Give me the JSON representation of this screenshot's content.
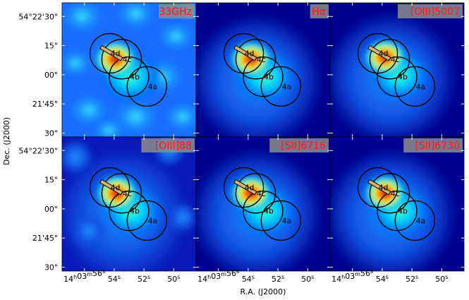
{
  "figure": {
    "xlabel": "R.A. (J2000)",
    "ylabel": "Dec. (J2000)"
  },
  "chart_data": {
    "type": "heatmap",
    "xlabel": "R.A. (J2000)",
    "ylabel": "Dec. (J2000)",
    "colormap": "jet",
    "x_ticks": [
      {
        "value": "14h03m56s",
        "label": "14h03m56s"
      },
      {
        "value": "14h03m54s",
        "label": "54s"
      },
      {
        "value": "14h03m52s",
        "label": "52s"
      },
      {
        "value": "14h03m50s",
        "label": "50s"
      }
    ],
    "y_ticks": [
      {
        "value": "54°22'30\"",
        "label": "54°22'30\""
      },
      {
        "value": "54°22'15\"",
        "label": "15\""
      },
      {
        "value": "54°22'00\"",
        "label": "00\""
      },
      {
        "value": "54°21'45\"",
        "label": "21'45\""
      },
      {
        "value": "54°21'30\"",
        "label": "30\""
      }
    ],
    "apertures": [
      {
        "name": "4d",
        "ra": "14h03m54.3s",
        "dec": "54°22'11\""
      },
      {
        "name": "4c",
        "ra": "14h03m53.5s",
        "dec": "54°22'08\""
      },
      {
        "name": "4b",
        "ra": "14h03m53.0s",
        "dec": "54°21'59\""
      },
      {
        "name": "4a",
        "ra": "14h03m51.8s",
        "dec": "54°21'54\""
      }
    ],
    "panels": [
      {
        "label": "33GHz",
        "peak_ra": "14h03m53.9s",
        "peak_dec": "54°22'08\"",
        "background": "diffuse"
      },
      {
        "label": "Hα",
        "peak_ra": "14h03m53.8s",
        "peak_dec": "54°22'08\"",
        "background": "compact"
      },
      {
        "label": "[OIII]5007",
        "peak_ra": "14h03m53.8s",
        "peak_dec": "54°22'09\"",
        "background": "compact"
      },
      {
        "label": "[OIII]88",
        "peak_ra": "14h03m53.8s",
        "peak_dec": "54°22'08\"",
        "background": "patchy"
      },
      {
        "label": "[SII]6716",
        "peak_ra": "14h03m53.8s",
        "peak_dec": "54°22'08\"",
        "background": "compact"
      },
      {
        "label": "[SII]6730",
        "peak_ra": "14h03m53.8s",
        "peak_dec": "54°22'08\"",
        "background": "compact"
      }
    ]
  }
}
